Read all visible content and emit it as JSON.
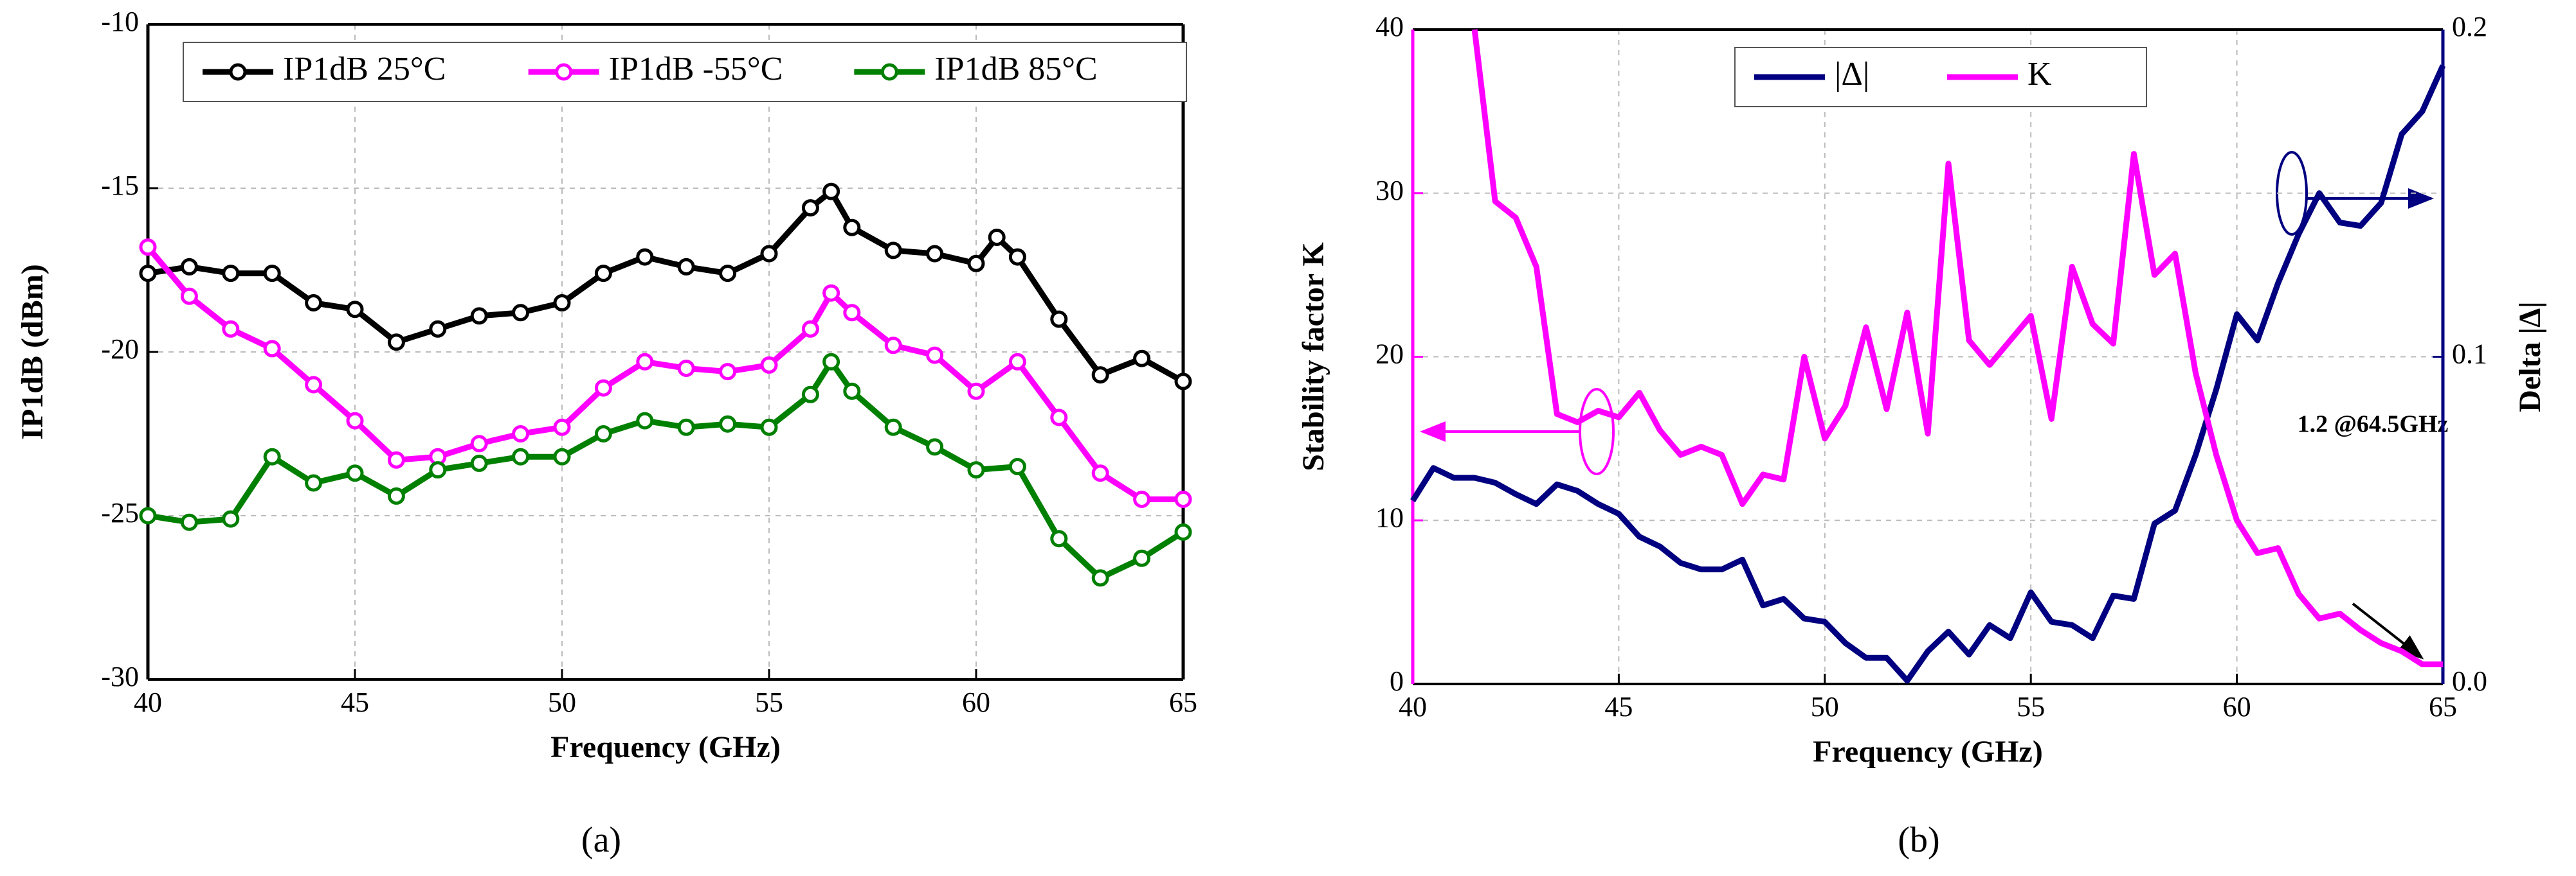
{
  "chart_data": [
    {
      "type": "line",
      "xlabel": "Frequency (GHz)",
      "ylabel": "IP1dB (dBm)",
      "caption": "(a)",
      "xlim": [
        40,
        65
      ],
      "xticks": [
        40,
        45,
        50,
        55,
        60,
        65
      ],
      "ylim": [
        -30,
        -10
      ],
      "yticks": [
        -30,
        -25,
        -20,
        -15,
        -10
      ],
      "grid": true,
      "markers": true,
      "legend": "upper center",
      "series": [
        {
          "name": "IP1dB  25°C",
          "color": "#000000",
          "x": [
            40,
            41,
            42,
            43,
            44,
            45,
            46,
            47,
            48,
            49,
            50,
            51,
            52,
            53,
            54,
            55,
            56,
            56.5,
            57,
            58,
            59,
            60,
            60.5,
            61,
            62,
            63,
            64,
            65
          ],
          "values": [
            -17.6,
            -17.4,
            -17.6,
            -17.6,
            -18.5,
            -18.7,
            -19.7,
            -19.3,
            -18.9,
            -18.8,
            -18.5,
            -17.6,
            -17.1,
            -17.4,
            -17.6,
            -17.0,
            -15.6,
            -15.1,
            -16.2,
            -16.9,
            -17.0,
            -17.3,
            -16.5,
            -17.1,
            -19.0,
            -20.7,
            -20.2,
            -20.9
          ]
        },
        {
          "name": "IP1dB -55°C",
          "color": "#ff00ff",
          "x": [
            40,
            41,
            42,
            43,
            44,
            45,
            46,
            47,
            48,
            49,
            50,
            51,
            52,
            53,
            54,
            55,
            56,
            56.5,
            57,
            58,
            59,
            60,
            61,
            62,
            63,
            64,
            65
          ],
          "values": [
            -16.8,
            -18.3,
            -19.3,
            -19.9,
            -21.0,
            -22.1,
            -23.3,
            -23.2,
            -22.8,
            -22.5,
            -22.3,
            -21.1,
            -20.3,
            -20.5,
            -20.6,
            -20.4,
            -19.3,
            -18.2,
            -18.8,
            -19.8,
            -20.1,
            -21.2,
            -20.3,
            -22.0,
            -23.7,
            -24.5,
            -24.5
          ]
        },
        {
          "name": "IP1dB  85°C",
          "color": "#008000",
          "x": [
            40,
            41,
            42,
            43,
            44,
            45,
            46,
            47,
            48,
            49,
            50,
            51,
            52,
            53,
            54,
            55,
            56,
            56.5,
            57,
            58,
            59,
            60,
            61,
            62,
            63,
            64,
            65
          ],
          "values": [
            -25.0,
            -25.2,
            -25.1,
            -23.2,
            -24.0,
            -23.7,
            -24.4,
            -23.6,
            -23.4,
            -23.2,
            -23.2,
            -22.5,
            -22.1,
            -22.3,
            -22.2,
            -22.3,
            -21.3,
            -20.3,
            -21.2,
            -22.3,
            -22.9,
            -23.6,
            -23.5,
            -25.7,
            -26.9,
            -26.3,
            -25.5
          ]
        }
      ]
    },
    {
      "type": "line",
      "xlabel": "Frequency (GHz)",
      "ylabel": "Stability factor K",
      "y2label": "Delta |Δ|",
      "caption": "(b)",
      "xlim": [
        40,
        65
      ],
      "xticks": [
        40,
        45,
        50,
        55,
        60,
        65
      ],
      "ylim": [
        0,
        40
      ],
      "yticks": [
        0,
        10,
        20,
        30,
        40
      ],
      "y2lim": [
        0,
        0.2
      ],
      "y2ticks": [
        {
          "value": 0,
          "label": "0.0"
        },
        0.1,
        0.2
      ],
      "ycolor": "#ff00ff",
      "y2color": "#000080",
      "grid": true,
      "markers": false,
      "legend": "upper center",
      "annotation": "1.2 @64.5GHz",
      "series": [
        {
          "name": "|Δ|",
          "color": "#000080",
          "axis": "y2",
          "x": [
            40,
            40.5,
            41,
            41.5,
            42,
            42.5,
            43,
            43.5,
            44,
            44.5,
            45,
            45.5,
            46,
            46.5,
            47,
            47.5,
            48,
            48.5,
            49,
            49.5,
            50,
            50.5,
            51,
            51.5,
            52,
            52.5,
            53,
            53.5,
            54,
            54.5,
            55,
            55.5,
            56,
            56.5,
            57,
            57.5,
            58,
            58.5,
            59,
            59.5,
            60,
            60.5,
            61,
            61.5,
            62,
            62.5,
            63,
            63.5,
            64,
            64.5,
            65
          ],
          "values": [
            0.056,
            0.066,
            0.063,
            0.063,
            0.0615,
            0.058,
            0.055,
            0.061,
            0.059,
            0.055,
            0.052,
            0.045,
            0.042,
            0.037,
            0.035,
            0.035,
            0.038,
            0.024,
            0.026,
            0.02,
            0.019,
            0.0125,
            0.008,
            0.008,
            0.001,
            0.01,
            0.016,
            0.009,
            0.018,
            0.014,
            0.028,
            0.019,
            0.018,
            0.014,
            0.027,
            0.026,
            0.049,
            0.053,
            0.07,
            0.09,
            0.113,
            0.105,
            0.1225,
            0.1375,
            0.15,
            0.141,
            0.14,
            0.147,
            0.168,
            0.175,
            0.189
          ]
        },
        {
          "name": "K",
          "color": "#ff00ff",
          "x": [
            41.5,
            42,
            42.5,
            43,
            43.5,
            44,
            44.5,
            45,
            45.5,
            46,
            46.5,
            47,
            47.5,
            48,
            48.5,
            49,
            49.5,
            50,
            50.5,
            51,
            51.5,
            52,
            52.5,
            53,
            53.5,
            54,
            54.5,
            55,
            55.5,
            56,
            56.5,
            57,
            57.5,
            58,
            58.5,
            59,
            59.5,
            60,
            60.5,
            61,
            61.5,
            62,
            62.5,
            63,
            63.5,
            64,
            64.5,
            65
          ],
          "values": [
            40,
            29.5,
            28.5,
            25.5,
            16.5,
            16,
            16.7,
            16.3,
            17.8,
            15.5,
            14,
            14.5,
            14,
            11,
            12.8,
            12.5,
            20,
            15,
            17,
            21.8,
            16.8,
            22.7,
            15.3,
            31.8,
            21,
            19.5,
            21,
            22.5,
            16.2,
            25.5,
            22,
            20.8,
            32.4,
            25,
            26.3,
            19,
            14,
            10,
            8,
            8.3,
            5.5,
            4,
            4.3,
            3.3,
            2.5,
            2,
            1.2,
            1.2
          ]
        }
      ]
    }
  ]
}
